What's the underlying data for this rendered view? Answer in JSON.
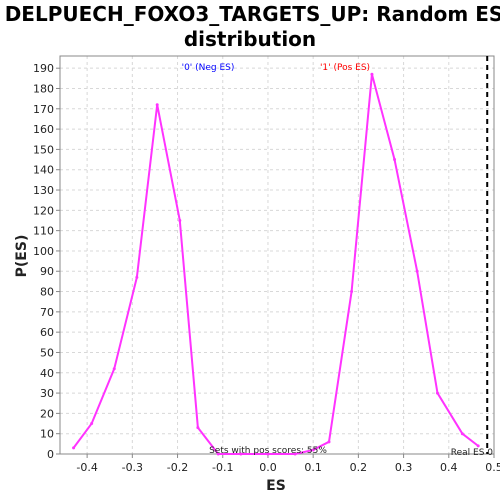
{
  "chart_data": {
    "type": "line",
    "title_line1": "DELPUECH_FOXO3_TARGETS_UP: Random ES",
    "title_line2": "distribution",
    "xlabel": "ES",
    "ylabel": "P(ES)",
    "xlim": [
      -0.46,
      0.5
    ],
    "ylim": [
      0,
      196
    ],
    "x_ticks": [
      "-0.4",
      "-0.3",
      "-0.2",
      "-0.1",
      "0.0",
      "0.1",
      "0.2",
      "0.3",
      "0.4",
      "0.5"
    ],
    "x_tick_values": [
      -0.4,
      -0.3,
      -0.2,
      -0.1,
      0.0,
      0.1,
      0.2,
      0.3,
      0.4,
      0.5
    ],
    "y_ticks": [
      0,
      10,
      20,
      30,
      40,
      50,
      60,
      70,
      80,
      90,
      100,
      110,
      120,
      130,
      140,
      150,
      160,
      170,
      180,
      190
    ],
    "grid": true,
    "series": [
      {
        "color": "#ff33ff",
        "x": [
          -0.43,
          -0.39,
          -0.34,
          -0.29,
          -0.245,
          -0.195,
          -0.155,
          -0.11,
          -0.06,
          0.0,
          0.06,
          0.1,
          0.135,
          0.185,
          0.23,
          0.28,
          0.33,
          0.375,
          0.43,
          0.465
        ],
        "y": [
          3,
          15,
          42,
          87,
          172,
          115,
          13,
          0,
          0,
          0,
          0,
          2,
          6,
          80,
          187,
          145,
          90,
          30,
          10,
          4
        ]
      }
    ],
    "annotations": {
      "neg_label": "'0' (Neg ES)",
      "pos_label": "'1' (Pos ES)",
      "neg_color": "#0000ff",
      "pos_color": "#ff0000",
      "sets_text": "Sets with pos scores: 55%",
      "real_es_text": "Real ES 0",
      "real_es_value": 0.485
    }
  }
}
